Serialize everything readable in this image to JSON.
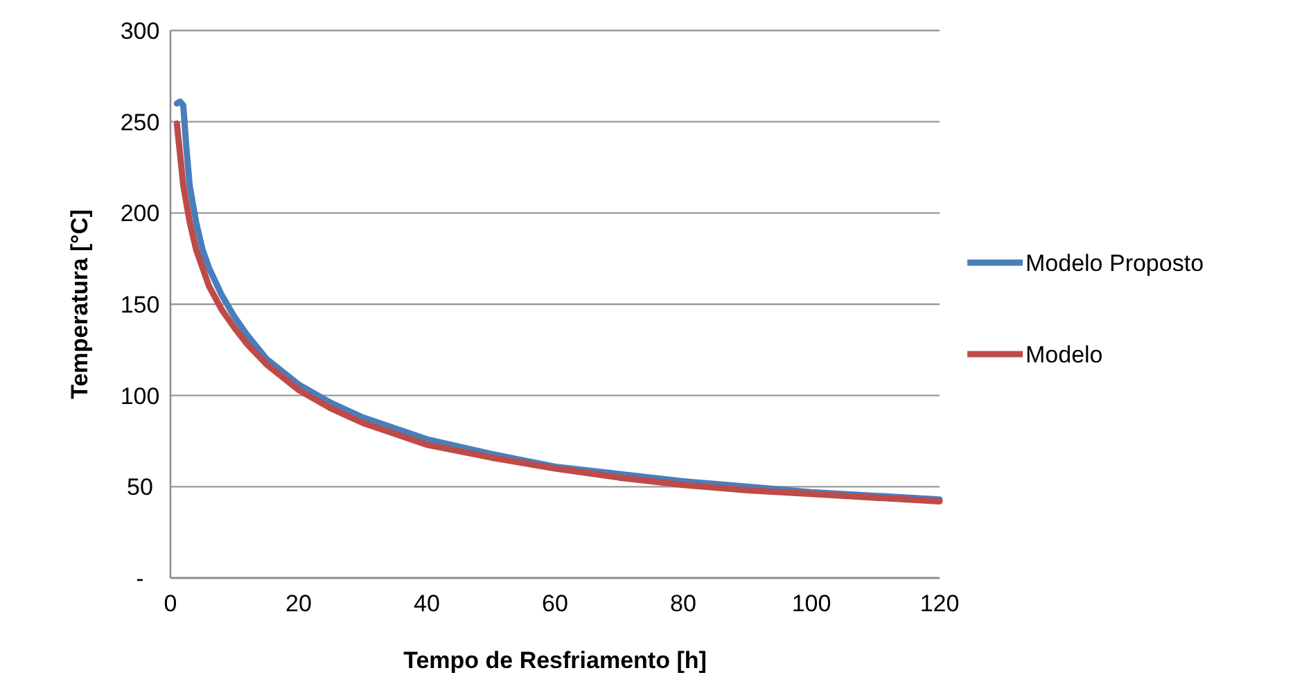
{
  "chart_data": {
    "type": "line",
    "xlabel": "Tempo de Resfriamento [h]",
    "ylabel": "Temperatura [°C]",
    "xlim": [
      0,
      120
    ],
    "xticks": [
      0,
      20,
      40,
      60,
      80,
      100,
      120
    ],
    "ylim": [
      0,
      300
    ],
    "yticks": [
      {
        "value": 0,
        "label": "-"
      },
      50,
      100,
      150,
      200,
      250,
      300
    ],
    "grid": "y",
    "legend": "right",
    "marker": "none",
    "line_style": "solid",
    "series": [
      {
        "name": "Modelo Proposto",
        "color": "#4a7ebb",
        "x": [
          1,
          1.5,
          2,
          2.5,
          3,
          4,
          5,
          6,
          8,
          10,
          12,
          15,
          20,
          25,
          30,
          40,
          50,
          60,
          70,
          80,
          90,
          100,
          110,
          120
        ],
        "values": [
          260,
          261,
          259,
          235,
          215,
          195,
          180,
          170,
          155,
          143,
          133,
          120,
          106,
          96,
          88,
          76,
          68,
          61,
          57,
          53,
          50,
          47,
          45,
          43
        ]
      },
      {
        "name": "Modelo",
        "color": "#be4b48",
        "x": [
          1,
          2,
          3,
          4,
          5,
          6,
          8,
          10,
          12,
          15,
          20,
          25,
          30,
          40,
          50,
          60,
          70,
          80,
          90,
          100,
          110,
          120
        ],
        "values": [
          249,
          215,
          195,
          180,
          170,
          160,
          147,
          137,
          128,
          117,
          103,
          93,
          85,
          73,
          66,
          60,
          55,
          51,
          48,
          46,
          44,
          42
        ]
      }
    ]
  }
}
